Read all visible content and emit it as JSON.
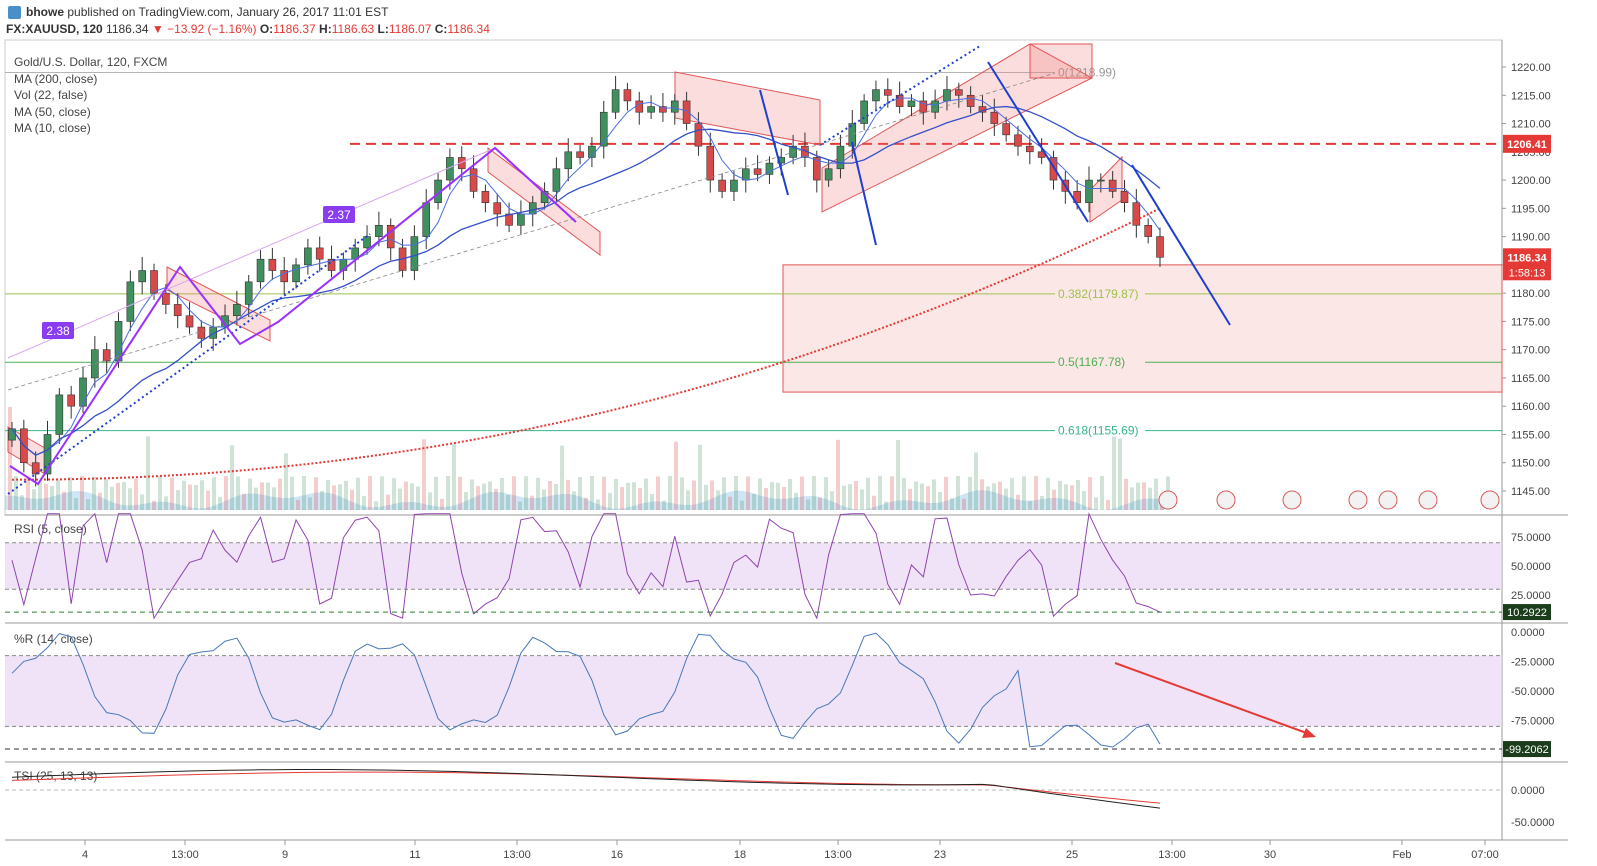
{
  "header": {
    "username": "bhowe",
    "published": "published on TradingView.com, January 26, 2017 11:01 EST",
    "symbol": "FX:XAUUSD, 120",
    "last": "1186.34",
    "change": "▼ −13.92 (−1.16%)",
    "ohlc_o_label": "O:",
    "ohlc_o": "1186.37",
    "ohlc_h_label": "H:",
    "ohlc_h": "1186.63",
    "ohlc_l_label": "L:",
    "ohlc_l": "1186.07",
    "ohlc_c_label": "C:",
    "ohlc_c": "1186.34"
  },
  "studies": [
    "Gold/U.S. Dollar, 120, FXCM",
    "MA (200, close)",
    "Vol (22, false)",
    "MA (50, close)",
    "MA (10, close)"
  ],
  "panes": {
    "rsi_label": "RSI (5, close)",
    "wr_label": "%R (14, close)",
    "tsi_label": "TSI (25, 13, 13)"
  },
  "colors": {
    "up": "#3f8f5f",
    "down": "#d84a4a",
    "ma10": "#4a6ee0",
    "ma50": "#3550c8",
    "ma200": "#e53935",
    "fib382": "#9cc24a",
    "fib50": "#4caf50",
    "fib618": "#37b48a",
    "rsi": "#8e44ad",
    "wr": "#4a78b8",
    "tsi": "#222222",
    "tsi_signal": "#e53935",
    "band": "#ead7f4",
    "drawing_purple": "#9b30ff",
    "drawing_blue": "#1f3fd0"
  },
  "chart_data": [
    {
      "type": "candlestick",
      "title": "Gold/U.S. Dollar, 120, FXCM",
      "ylim": [
        1140,
        1225
      ],
      "y_ticks": [
        "1220.00",
        "1215.00",
        "1210.00",
        "1205.00",
        "1200.00",
        "1195.00",
        "1190.00",
        "1185.00",
        "1180.00",
        "1175.00",
        "1170.00",
        "1165.00",
        "1160.00",
        "1155.00",
        "1150.00",
        "1145.00"
      ],
      "x_ticks": [
        "4",
        "13:00",
        "9",
        "11",
        "13:00",
        "16",
        "18",
        "13:00",
        "23",
        "25",
        "13:00",
        "30",
        "Feb",
        "07:00"
      ],
      "close_series_approx": [
        1156,
        1150,
        1148,
        1155,
        1162,
        1160,
        1165,
        1170,
        1168,
        1175,
        1182,
        1184,
        1180,
        1178,
        1176,
        1174,
        1172,
        1174,
        1176,
        1178,
        1182,
        1186,
        1184,
        1182,
        1185,
        1188,
        1186,
        1184,
        1186,
        1188,
        1190,
        1192,
        1188,
        1184,
        1190,
        1196,
        1200,
        1204,
        1202,
        1198,
        1196,
        1194,
        1192,
        1194,
        1196,
        1198,
        1202,
        1205,
        1204,
        1206,
        1212,
        1216,
        1214,
        1212,
        1213,
        1212,
        1214,
        1210,
        1206,
        1200,
        1198,
        1200,
        1202,
        1201,
        1203,
        1204,
        1206,
        1204,
        1200,
        1202,
        1206,
        1210,
        1214,
        1216,
        1215,
        1213,
        1214,
        1212,
        1214,
        1216,
        1215,
        1213,
        1212,
        1210,
        1208,
        1206,
        1205,
        1204,
        1200,
        1198,
        1196,
        1200,
        1200,
        1198,
        1196,
        1192,
        1190,
        1186.34
      ],
      "price_labels": {
        "level_1": "1206.41",
        "last": "1186.34",
        "countdown": "1:58:13"
      },
      "fib_levels": [
        {
          "label": "0(1218.99)",
          "value": 1218.99
        },
        {
          "label": "0.382(1179.87)",
          "value": 1179.87
        },
        {
          "label": "0.5(1167.78)",
          "value": 1167.78
        },
        {
          "label": "0.618(1155.69)",
          "value": 1155.69
        }
      ],
      "horizontal_line": 1206.41,
      "annotations": [
        "2.38",
        "2.37"
      ],
      "target_zone": [
        1162.5,
        1185
      ]
    },
    {
      "type": "line",
      "title": "RSI (5, close)",
      "ylim": [
        0,
        100
      ],
      "y_ticks": [
        "75.0000",
        "50.0000",
        "25.0000"
      ],
      "band": [
        30,
        70
      ],
      "last_value": "10.2922"
    },
    {
      "type": "line",
      "title": "%R (14, close)",
      "ylim": [
        -100,
        0
      ],
      "y_ticks": [
        "0.0000",
        "-25.0000",
        "-50.0000",
        "-75.0000"
      ],
      "band": [
        -80,
        -20
      ],
      "last_value": "-99.2062"
    },
    {
      "type": "line",
      "title": "TSI (25, 13, 13)",
      "y_ticks": [
        "0.0000",
        "-50.0000"
      ]
    }
  ]
}
